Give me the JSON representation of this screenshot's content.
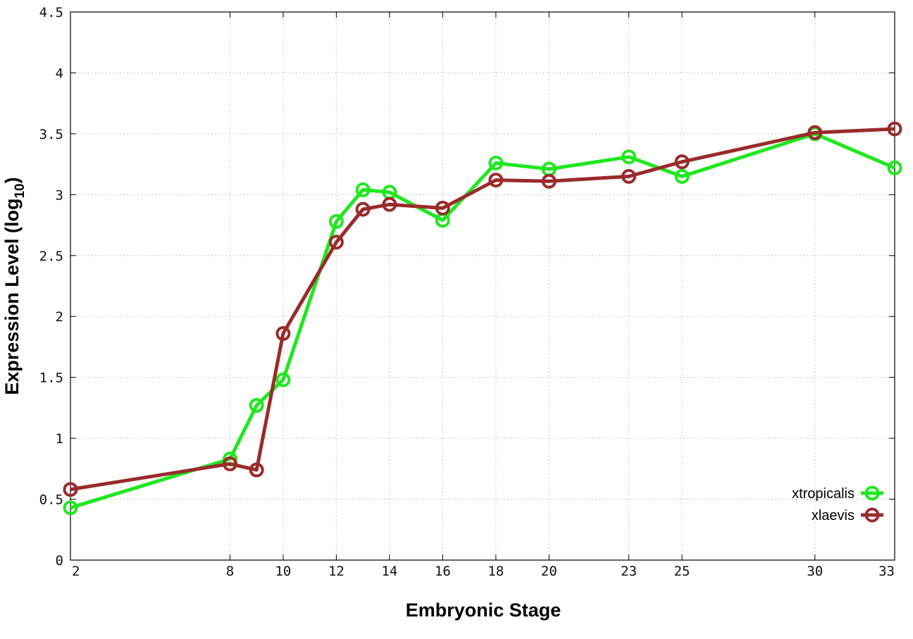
{
  "chart_data": {
    "type": "line",
    "xlabel": "Embryonic Stage",
    "ylabel_main": "Expression Level (log",
    "ylabel_sub": "10",
    "ylabel_close": ")",
    "xlim": [
      2,
      33
    ],
    "ylim": [
      0,
      4.5
    ],
    "x_ticks": [
      2,
      8,
      10,
      12,
      14,
      16,
      18,
      20,
      23,
      25,
      30,
      33
    ],
    "x_tick_labels": [
      "2",
      "8",
      "10",
      "12",
      "14",
      "16",
      "18",
      "20",
      "23",
      "25",
      "30",
      "33"
    ],
    "y_ticks": [
      0,
      0.5,
      1,
      1.5,
      2,
      2.5,
      3,
      3.5,
      4,
      4.5
    ],
    "y_tick_labels": [
      "0",
      "0.5",
      "1",
      "1.5",
      "2",
      "2.5",
      "3",
      "3.5",
      "4",
      "4.5"
    ],
    "grid": true,
    "legend_position": "bottom-right",
    "x": [
      2,
      8,
      9,
      10,
      12,
      13,
      14,
      16,
      18,
      20,
      23,
      25,
      30,
      33
    ],
    "series": [
      {
        "name": "xtropicalis",
        "color": "#1ee81e",
        "values": [
          0.43,
          0.83,
          1.27,
          1.48,
          2.78,
          3.04,
          3.02,
          2.79,
          3.26,
          3.21,
          3.31,
          3.15,
          3.5,
          3.22
        ]
      },
      {
        "name": "xlaevis",
        "color": "#9a2b2b",
        "values": [
          0.58,
          0.79,
          0.74,
          1.86,
          2.61,
          2.88,
          2.92,
          2.89,
          3.12,
          3.11,
          3.15,
          3.27,
          3.51,
          3.54
        ]
      }
    ]
  }
}
